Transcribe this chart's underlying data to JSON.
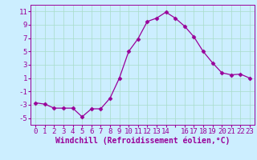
{
  "x": [
    0,
    1,
    2,
    3,
    4,
    5,
    6,
    7,
    8,
    9,
    10,
    11,
    12,
    13,
    14,
    15,
    16,
    17,
    18,
    19,
    20,
    21,
    22,
    23
  ],
  "y": [
    -2.7,
    -2.9,
    -3.5,
    -3.5,
    -3.5,
    -4.8,
    -3.6,
    -3.6,
    -2.0,
    1.0,
    5.0,
    6.9,
    9.5,
    10.0,
    10.9,
    10.0,
    8.8,
    7.2,
    5.0,
    3.3,
    1.8,
    1.5,
    1.6,
    1.0
  ],
  "line_color": "#990099",
  "marker": "D",
  "marker_size": 2.5,
  "bg_color": "#cceeff",
  "grid_color": "#aaddcc",
  "xlabel": "Windchill (Refroidissement éolien,°C)",
  "xlabel_fontsize": 7,
  "tick_color": "#990099",
  "tick_fontsize": 6.5,
  "ylim": [
    -6,
    12
  ],
  "yticks": [
    -5,
    -3,
    -1,
    1,
    3,
    5,
    7,
    9,
    11
  ],
  "xlim": [
    -0.5,
    23.5
  ],
  "xtick_labels": [
    "0",
    "1",
    "2",
    "3",
    "4",
    "5",
    "6",
    "7",
    "8",
    "9",
    "10",
    "11",
    "12",
    "13",
    "14",
    "",
    "16",
    "17",
    "18",
    "19",
    "20",
    "21",
    "22",
    "23"
  ]
}
